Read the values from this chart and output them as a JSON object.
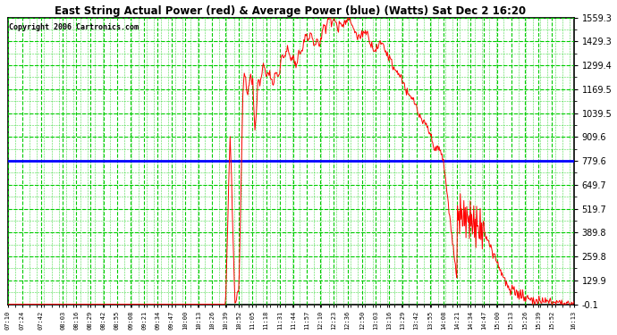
{
  "title": "East String Actual Power (red) & Average Power (blue) (Watts) Sat Dec 2 16:20",
  "copyright": "Copyright 2006 Cartronics.com",
  "ylabel_values": [
    1559.3,
    1429.3,
    1299.4,
    1169.5,
    1039.5,
    909.6,
    779.6,
    649.7,
    519.7,
    389.8,
    259.8,
    129.9,
    -0.1
  ],
  "ymin": -0.1,
  "ymax": 1559.3,
  "average_power": 779.6,
  "plot_bg_color": "#ffffff",
  "grid_color": "#00cc00",
  "red_line_color": "#ff0000",
  "blue_line_color": "#0000ff",
  "x_tick_labels": [
    "07:10",
    "07:24",
    "07:42",
    "08:03",
    "08:16",
    "08:29",
    "08:42",
    "08:55",
    "09:08",
    "09:21",
    "09:34",
    "09:47",
    "10:00",
    "10:13",
    "10:26",
    "10:39",
    "10:52",
    "11:05",
    "11:18",
    "11:31",
    "11:44",
    "11:57",
    "12:10",
    "12:23",
    "12:36",
    "12:50",
    "13:03",
    "13:16",
    "13:29",
    "13:42",
    "13:55",
    "14:08",
    "14:21",
    "14:34",
    "14:47",
    "15:00",
    "15:13",
    "15:26",
    "15:39",
    "15:52",
    "16:13"
  ]
}
